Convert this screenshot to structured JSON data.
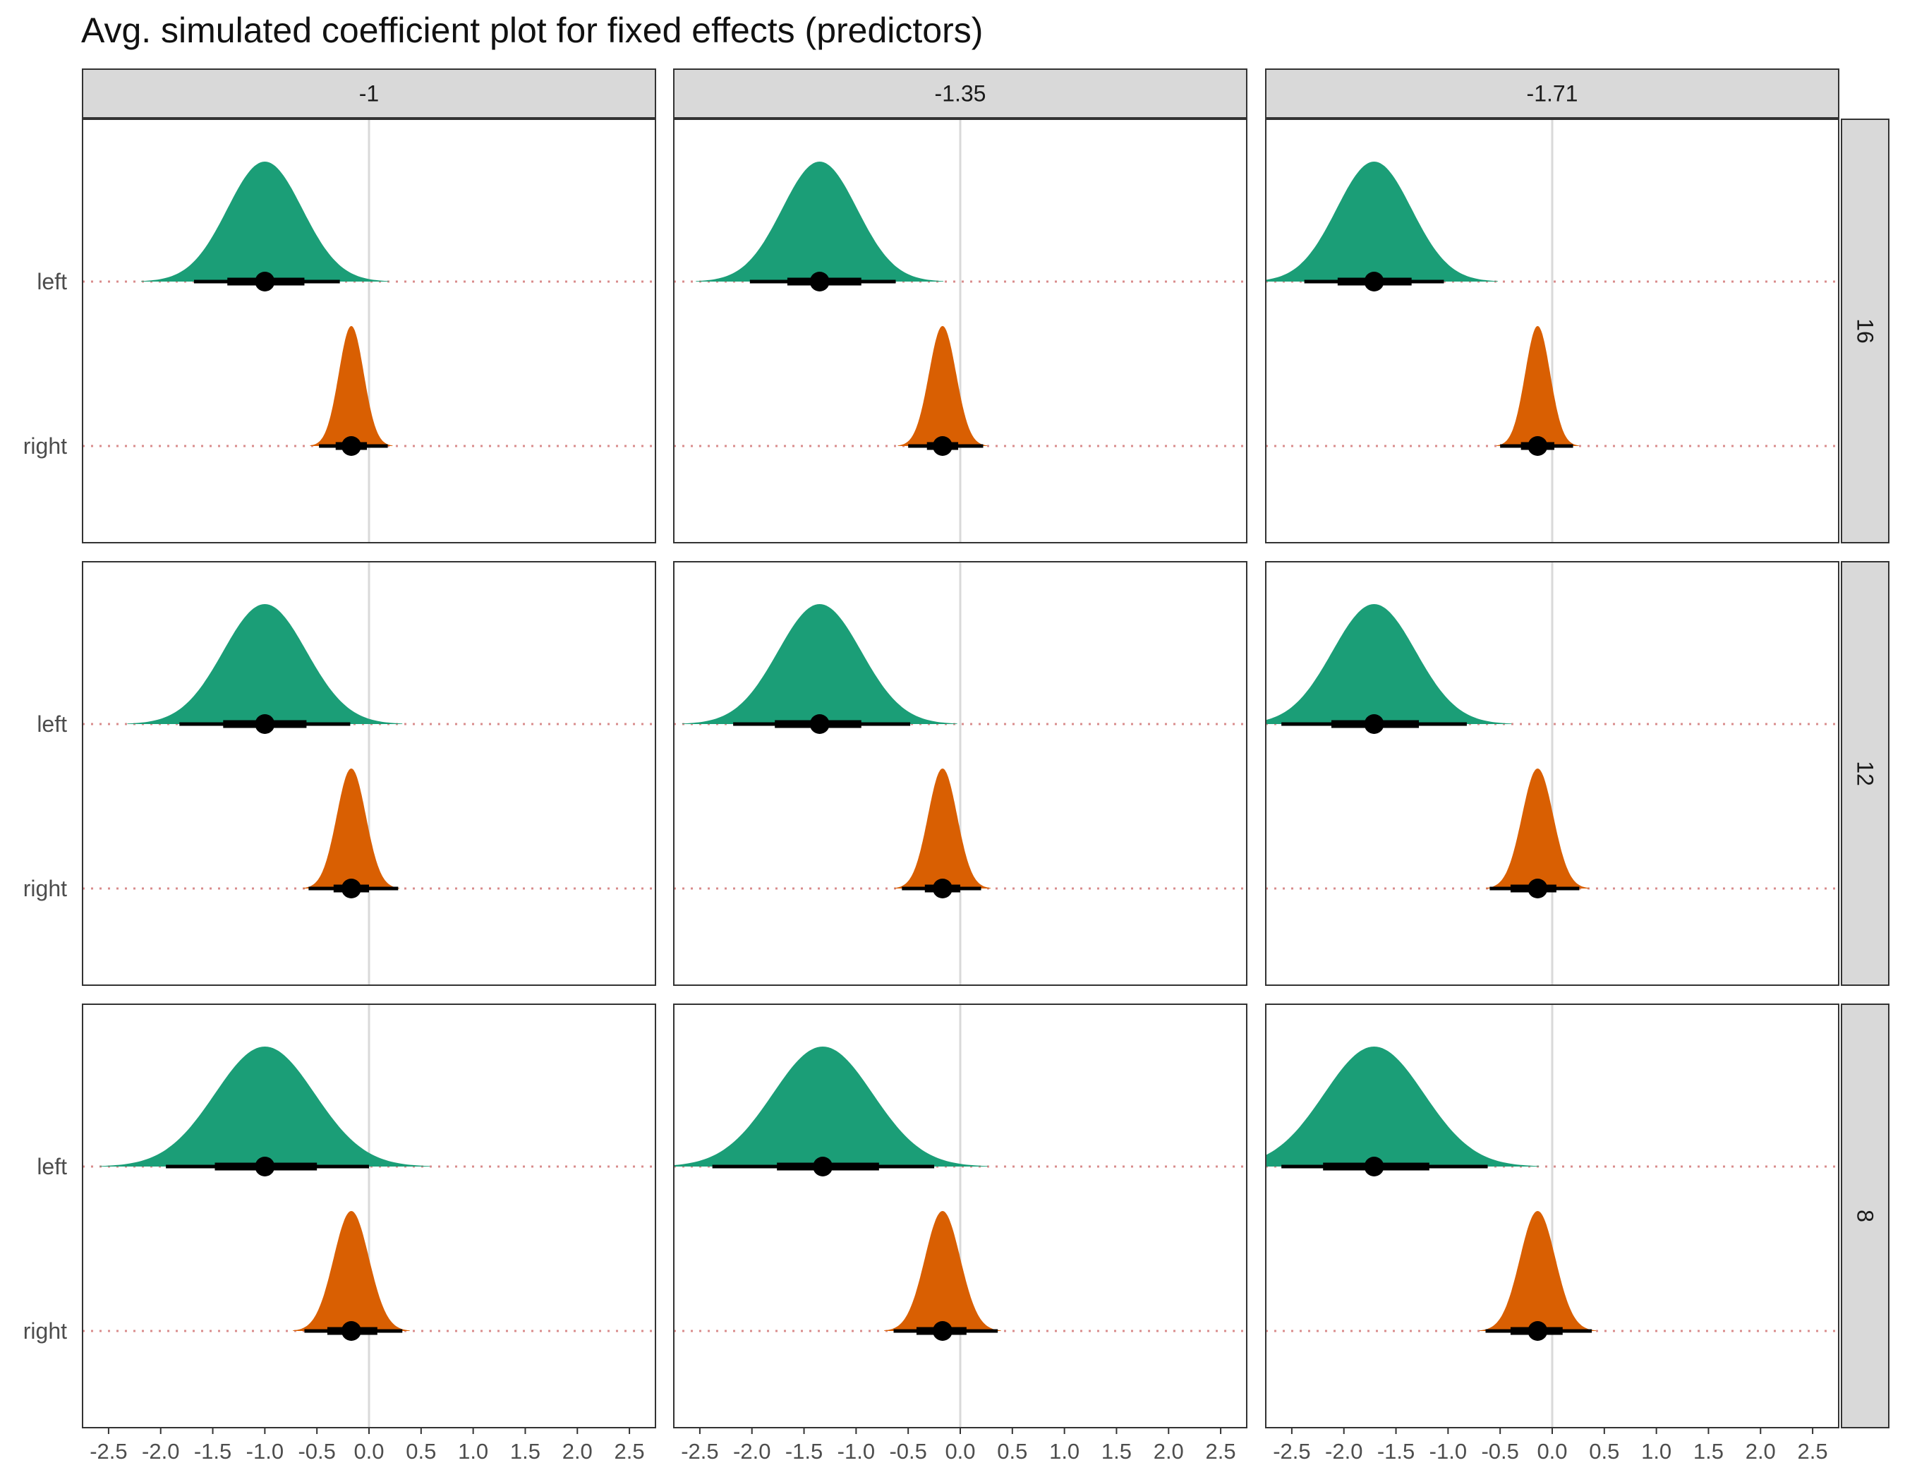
{
  "title": "Avg. simulated coefficient plot for fixed effects (predictors)",
  "chart_data": {
    "type": "halfeye",
    "title": "Avg. simulated coefficient plot for fixed effects (predictors)",
    "xlabel": "",
    "ylabel": "",
    "xlim": [
      -2.75,
      2.75
    ],
    "x_ticks": [
      -2.5,
      -2.0,
      -1.5,
      -1.0,
      -0.5,
      0.0,
      0.5,
      1.0,
      1.5,
      2.0,
      2.5
    ],
    "x_tick_labels": [
      "-2.5",
      "-2.0",
      "-1.5",
      "-1.0",
      "-0.5",
      "0.0",
      "0.5",
      "1.0",
      "1.5",
      "2.0",
      "2.5"
    ],
    "categories": [
      "left",
      "right"
    ],
    "col_facets": [
      "-1",
      "-1.35",
      "-1.71"
    ],
    "row_facets": [
      "16",
      "12",
      "8"
    ],
    "reference_line_x": 0,
    "grid": false,
    "legend": "none",
    "colors": {
      "left": "#1b9e77",
      "right": "#d95f02",
      "point": "#000000",
      "baseline": "#d98c8c",
      "zero_line": "#d9d9d9",
      "strip_bg": "#d9d9d9"
    },
    "panels": [
      {
        "row": "16",
        "col": "-1",
        "left": {
          "median": -1.0,
          "sd": 0.36,
          "q66": [
            -1.36,
            -0.62
          ],
          "q95": [
            -1.68,
            -0.28
          ]
        },
        "right": {
          "median": -0.17,
          "sd": 0.12,
          "q66": [
            -0.32,
            -0.02
          ],
          "q95": [
            -0.48,
            0.18
          ]
        }
      },
      {
        "row": "16",
        "col": "-1.35",
        "left": {
          "median": -1.35,
          "sd": 0.36,
          "q66": [
            -1.66,
            -0.95
          ],
          "q95": [
            -2.02,
            -0.62
          ]
        },
        "right": {
          "median": -0.17,
          "sd": 0.13,
          "q66": [
            -0.32,
            -0.02
          ],
          "q95": [
            -0.5,
            0.22
          ]
        }
      },
      {
        "row": "16",
        "col": "-1.71",
        "left": {
          "median": -1.71,
          "sd": 0.36,
          "q66": [
            -2.06,
            -1.35
          ],
          "q95": [
            -2.38,
            -1.04
          ]
        },
        "right": {
          "median": -0.14,
          "sd": 0.12,
          "q66": [
            -0.3,
            0.02
          ],
          "q95": [
            -0.5,
            0.2
          ]
        }
      },
      {
        "row": "12",
        "col": "-1",
        "left": {
          "median": -1.0,
          "sd": 0.4,
          "q66": [
            -1.4,
            -0.6
          ],
          "q95": [
            -1.82,
            -0.18
          ]
        },
        "right": {
          "median": -0.17,
          "sd": 0.14,
          "q66": [
            -0.34,
            0.0
          ],
          "q95": [
            -0.58,
            0.28
          ]
        }
      },
      {
        "row": "12",
        "col": "-1.35",
        "left": {
          "median": -1.35,
          "sd": 0.4,
          "q66": [
            -1.78,
            -0.95
          ],
          "q95": [
            -2.18,
            -0.48
          ]
        },
        "right": {
          "median": -0.17,
          "sd": 0.14,
          "q66": [
            -0.34,
            0.0
          ],
          "q95": [
            -0.56,
            0.2
          ]
        }
      },
      {
        "row": "12",
        "col": "-1.71",
        "left": {
          "median": -1.71,
          "sd": 0.4,
          "q66": [
            -2.12,
            -1.28
          ],
          "q95": [
            -2.6,
            -0.82
          ]
        },
        "right": {
          "median": -0.14,
          "sd": 0.15,
          "q66": [
            -0.4,
            0.04
          ],
          "q95": [
            -0.6,
            0.26
          ]
        }
      },
      {
        "row": "8",
        "col": "-1",
        "left": {
          "median": -1.0,
          "sd": 0.48,
          "q66": [
            -1.48,
            -0.5
          ],
          "q95": [
            -1.95,
            0.0
          ]
        },
        "right": {
          "median": -0.17,
          "sd": 0.17,
          "q66": [
            -0.4,
            0.08
          ],
          "q95": [
            -0.62,
            0.32
          ]
        }
      },
      {
        "row": "8",
        "col": "-1.35",
        "left": {
          "median": -1.32,
          "sd": 0.48,
          "q66": [
            -1.76,
            -0.78
          ],
          "q95": [
            -2.38,
            -0.25
          ]
        },
        "right": {
          "median": -0.17,
          "sd": 0.17,
          "q66": [
            -0.42,
            0.06
          ],
          "q95": [
            -0.64,
            0.36
          ]
        }
      },
      {
        "row": "8",
        "col": "-1.71",
        "left": {
          "median": -1.71,
          "sd": 0.48,
          "q66": [
            -2.2,
            -1.18
          ],
          "q95": [
            -2.6,
            -0.62
          ]
        },
        "right": {
          "median": -0.14,
          "sd": 0.17,
          "q66": [
            -0.4,
            0.1
          ],
          "q95": [
            -0.64,
            0.38
          ]
        }
      }
    ]
  }
}
